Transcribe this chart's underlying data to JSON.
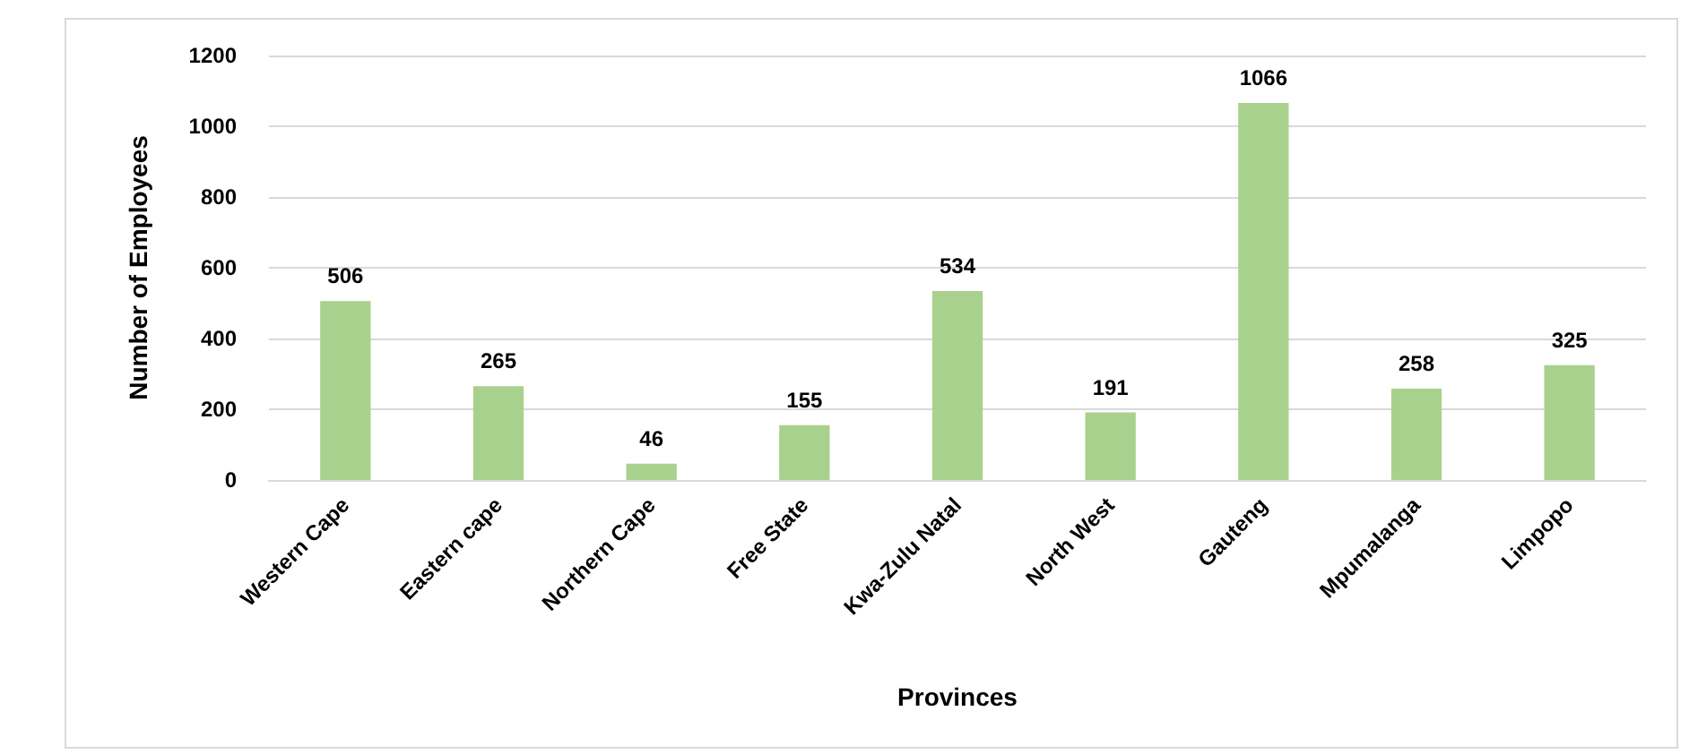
{
  "chart_data": {
    "type": "bar",
    "categories": [
      "Western Cape",
      "Eastern cape",
      "Northern Cape",
      "Free State",
      "Kwa-Zulu Natal",
      "North West",
      "Gauteng",
      "Mpumalanga",
      "Limpopo"
    ],
    "values": [
      506,
      265,
      46,
      155,
      534,
      191,
      1066,
      258,
      325
    ],
    "color": "#a9d18e",
    "xlabel": "Provinces",
    "ylabel": "Number of Employees",
    "ylim": [
      0,
      1200
    ],
    "yticks": [
      0,
      200,
      400,
      600,
      800,
      1000,
      1200
    ],
    "grid": "y",
    "data_labels": true
  }
}
